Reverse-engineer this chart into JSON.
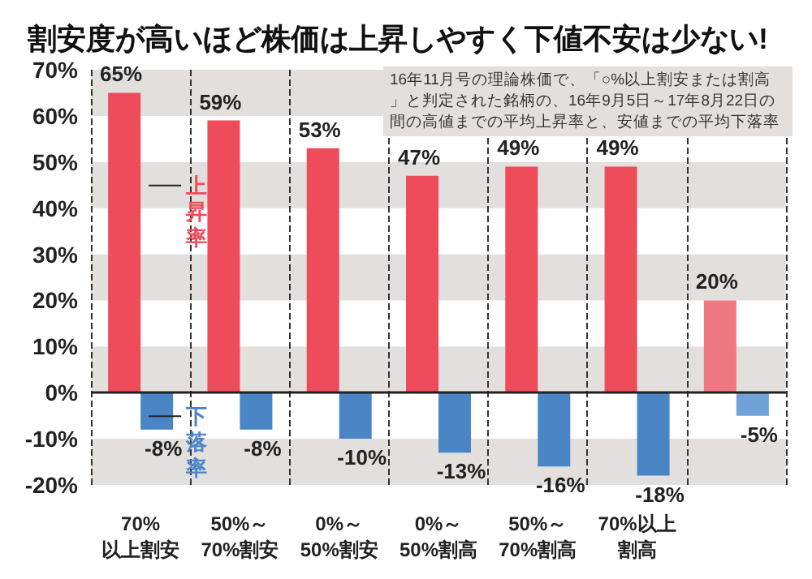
{
  "chart_data": {
    "type": "bar",
    "title": "割安度が高いほど株価は上昇しやすく下値不安は少ない!",
    "annotations": [
      "16年11月号の理論株価で、「○%以上割安または割高」と判定された銘柄の、16年9月5日～17年8月22日の間の高値までの平均上昇率と、安値までの平均下落率"
    ],
    "categories": [
      "70%\n以上割安",
      "50%～\n70%割安",
      "0%～\n50%割安",
      "0%～\n50%割高",
      "50%～\n70%割高",
      "70%以上割高",
      null
    ],
    "series": [
      {
        "name": "上昇率",
        "color": "#ee4b5b",
        "colors": [
          "#ee4b5b",
          "#ee4b5b",
          "#ee4b5b",
          "#ee4b5b",
          "#ee4b5b",
          "#ee4b5b",
          "#f07880"
        ],
        "values": [
          65,
          59,
          53,
          47,
          49,
          49,
          20
        ],
        "value_labels": [
          "65%",
          "59%",
          "53%",
          "47%",
          "49%",
          "49%",
          "20%"
        ]
      },
      {
        "name": "下落率",
        "color": "#4a85c6",
        "colors": [
          "#4a85c6",
          "#4a85c6",
          "#4a85c6",
          "#4a85c6",
          "#4a85c6",
          "#4a85c6",
          "#6fa2d6"
        ],
        "values": [
          -8,
          -8,
          -10,
          -13,
          -16,
          -18,
          -5
        ],
        "value_labels": [
          "-8%",
          "-8%",
          "-10%",
          "-13%",
          "-16%",
          "-18%",
          "-5%"
        ]
      }
    ],
    "ylim": [
      -20,
      70
    ],
    "yticks": [
      {
        "value": -20,
        "label": "-20%"
      },
      {
        "value": -10,
        "label": "-10%"
      },
      {
        "value": 0,
        "label": "0%"
      },
      {
        "value": 10,
        "label": "10%"
      },
      {
        "value": 20,
        "label": "20%"
      },
      {
        "value": 30,
        "label": "30%"
      },
      {
        "value": 40,
        "label": "40%"
      },
      {
        "value": 50,
        "label": "50%"
      },
      {
        "value": 60,
        "label": "60%"
      },
      {
        "value": 70,
        "label": "70%"
      }
    ],
    "grid": true,
    "legend": false
  }
}
